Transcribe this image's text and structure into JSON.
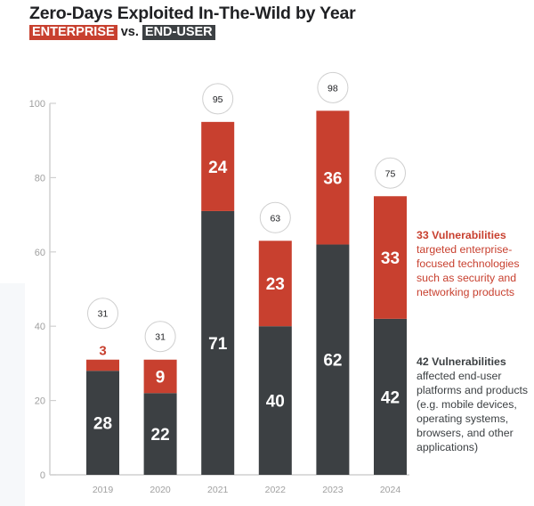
{
  "chart_data": {
    "type": "bar",
    "stacked": true,
    "title": "Zero-Days Exploited In-The-Wild by Year",
    "subtitle": {
      "enterprise": "ENTERPRISE",
      "vs": "vs.",
      "end_user": "END-USER"
    },
    "categories": [
      "2019",
      "2020",
      "2021",
      "2022",
      "2023",
      "2024"
    ],
    "series": [
      {
        "name": "END-USER",
        "color": "#3c4043",
        "values": [
          28,
          22,
          71,
          40,
          62,
          42
        ]
      },
      {
        "name": "ENTERPRISE",
        "color": "#c8402f",
        "values": [
          3,
          9,
          24,
          23,
          36,
          33
        ]
      }
    ],
    "totals": [
      31,
      31,
      95,
      63,
      98,
      75
    ],
    "ylim": [
      0,
      100
    ],
    "yticks": [
      0,
      20,
      40,
      60,
      80,
      100
    ],
    "grid": false,
    "xlabel": "",
    "ylabel": "",
    "annotations": {
      "enterprise": {
        "heading": "33 Vulnerabilities",
        "body": "targeted enterprise-focused technologies such as security and networking products"
      },
      "end_user": {
        "heading": "42 Vulnerabilities",
        "body": "affected end-user platforms and products (e.g. mobile devices, operating systems, browsers, and other applications)"
      }
    }
  }
}
